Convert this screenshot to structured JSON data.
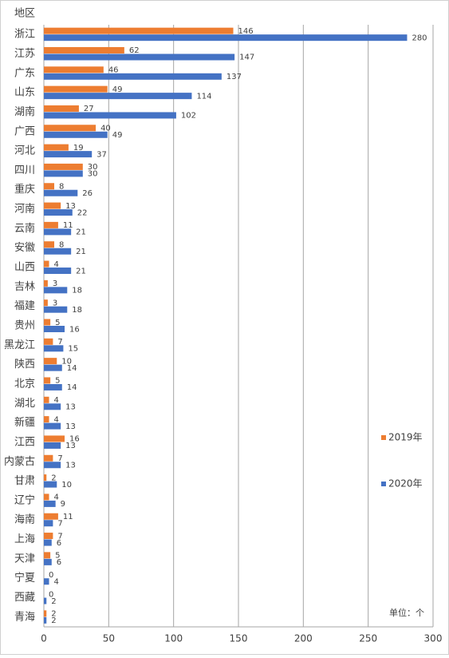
{
  "chart_data": {
    "type": "hbar",
    "y_label": "地区",
    "annotation": "单位：个",
    "categories": [
      "浙江",
      "江苏",
      "广东",
      "山东",
      "湖南",
      "广西",
      "河北",
      "四川",
      "重庆",
      "河南",
      "云南",
      "安徽",
      "山西",
      "吉林",
      "福建",
      "贵州",
      "黑龙江",
      "陕西",
      "北京",
      "湖北",
      "新疆",
      "江西",
      "内蒙古",
      "甘肃",
      "辽宁",
      "海南",
      "上海",
      "天津",
      "宁夏",
      "西藏",
      "青海"
    ],
    "series": [
      {
        "name": "2019年",
        "color": "#ed7d31",
        "values": [
          146,
          62,
          46,
          49,
          27,
          40,
          19,
          30,
          8,
          13,
          11,
          8,
          4,
          3,
          3,
          5,
          7,
          10,
          5,
          4,
          4,
          16,
          7,
          2,
          4,
          11,
          7,
          5,
          0,
          0,
          2
        ]
      },
      {
        "name": "2020年",
        "color": "#4472c4",
        "values": [
          280,
          147,
          137,
          114,
          102,
          49,
          37,
          30,
          26,
          22,
          21,
          21,
          21,
          18,
          18,
          16,
          15,
          14,
          14,
          13,
          13,
          13,
          13,
          10,
          9,
          7,
          6,
          6,
          4,
          2,
          2
        ]
      }
    ],
    "xlim": [
      0,
      300
    ],
    "xticks": [
      0,
      50,
      100,
      150,
      200,
      250,
      300
    ],
    "grid": true
  }
}
